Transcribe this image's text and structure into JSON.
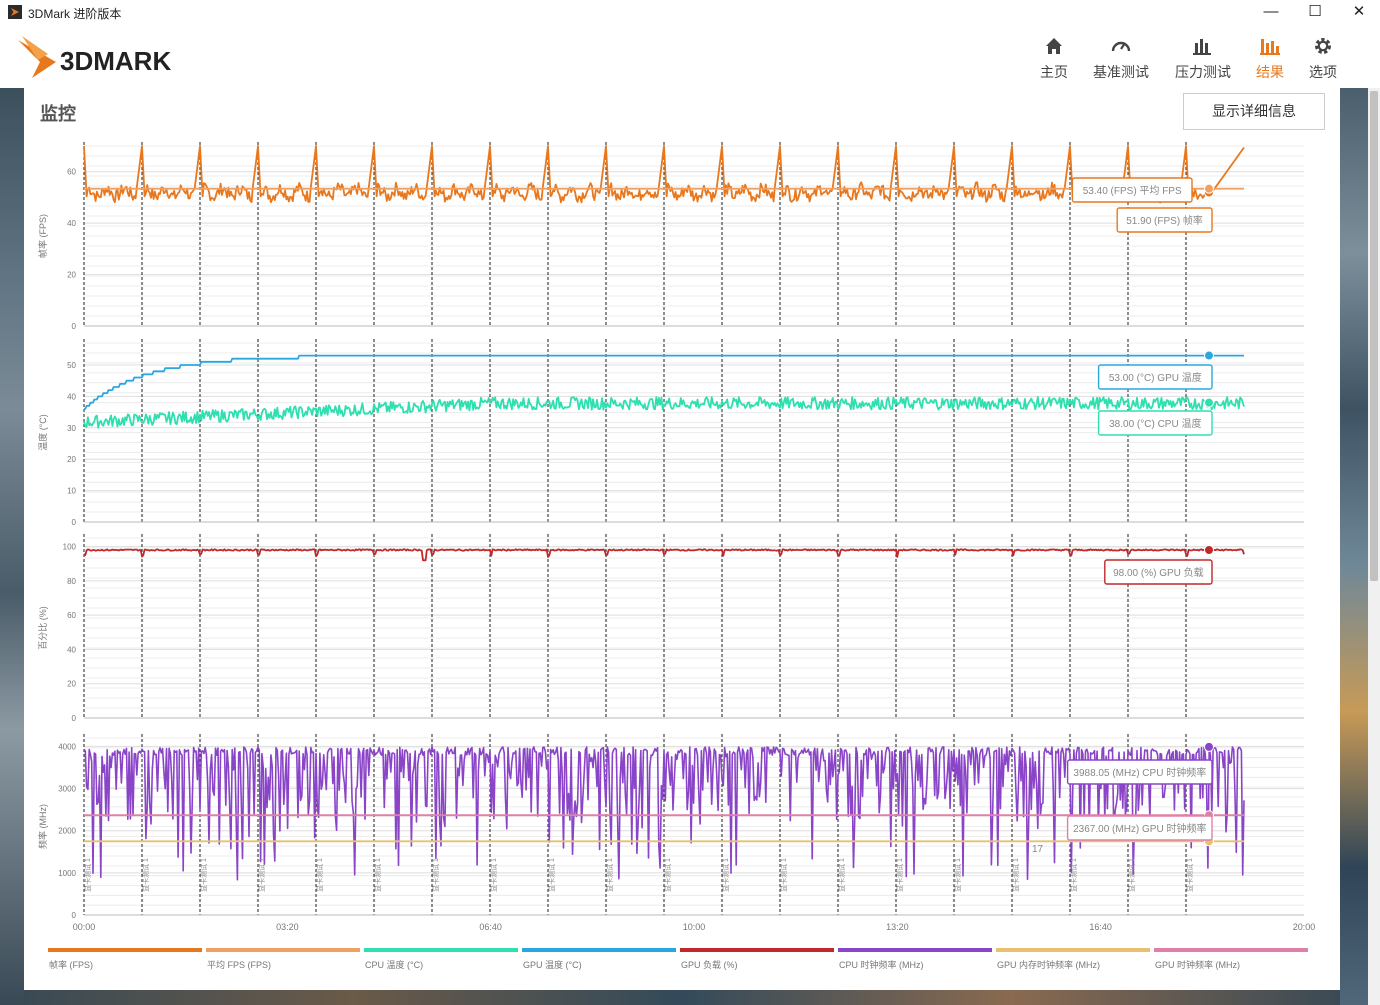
{
  "window": {
    "title": "3DMark 进阶版本",
    "min_icon": "minimize-icon",
    "max_icon": "maximize-icon",
    "close_icon": "close-icon"
  },
  "header": {
    "logo_text": "3DMARK",
    "nav": [
      {
        "label": "主页",
        "icon": "home-icon",
        "active": false
      },
      {
        "label": "基准测试",
        "icon": "gauge-icon",
        "active": false
      },
      {
        "label": "压力测试",
        "icon": "bar-chart-icon",
        "active": false
      },
      {
        "label": "结果",
        "icon": "results-icon",
        "active": true
      },
      {
        "label": "选项",
        "icon": "gear-icon",
        "active": false
      }
    ],
    "accent": "#e8781e"
  },
  "panel": {
    "title": "监控",
    "detail_button": "显示详细信息"
  },
  "chart_data": {
    "type": "line",
    "x_ticks": [
      "00:00",
      "03:20",
      "06:40",
      "10:00",
      "13:20",
      "16:40",
      "20:00"
    ],
    "x_range_seconds": [
      0,
      1200
    ],
    "loop_count": 20,
    "loop_label": "显卡测试 1",
    "panels": [
      {
        "ylabel": "帧率 (FPS)",
        "ylim": [
          0,
          70
        ],
        "yticks": [
          0,
          20,
          40,
          60
        ],
        "series": [
          {
            "name": "帧率 (FPS)",
            "color": "#e8781e",
            "pattern": "sawtooth",
            "base": 51.9,
            "peak": 70,
            "low": 48
          },
          {
            "name": "平均 FPS (FPS)",
            "color": "#f0a060",
            "pattern": "flat",
            "base": 53.4
          }
        ],
        "callouts": [
          {
            "text": "53.40 (FPS) 平均 FPS",
            "color": "#e8781e"
          },
          {
            "text": "51.90 (FPS) 帧率",
            "color": "#e8781e"
          }
        ]
      },
      {
        "ylabel": "温度 (°C)",
        "ylim": [
          0,
          57
        ],
        "yticks": [
          0,
          10,
          20,
          30,
          40,
          50
        ],
        "series": [
          {
            "name": "GPU 温度 (°C)",
            "color": "#29a8e0",
            "pattern": "rise",
            "start": 36,
            "end": 53
          },
          {
            "name": "CPU 温度 (°C)",
            "color": "#2ee0b0",
            "pattern": "noisy-rise",
            "start": 31,
            "end": 37
          }
        ],
        "callouts": [
          {
            "text": "53.00 (°C) GPU 温度",
            "color": "#29a8e0"
          },
          {
            "text": "38.00 (°C) CPU 温度",
            "color": "#2ee0b0"
          }
        ]
      },
      {
        "ylabel": "百分比 (%)",
        "ylim": [
          0,
          105
        ],
        "yticks": [
          0,
          20,
          40,
          60,
          80,
          100
        ],
        "series": [
          {
            "name": "GPU 负载 (%)",
            "color": "#c0282a",
            "pattern": "flat-dips",
            "base": 98
          }
        ],
        "callouts": [
          {
            "text": "98.00 (%) GPU 负载",
            "color": "#c0282a"
          }
        ]
      },
      {
        "ylabel": "频率 (MHz)",
        "ylim": [
          0,
          4200
        ],
        "yticks": [
          0,
          1000,
          2000,
          3000,
          4000
        ],
        "series": [
          {
            "name": "CPU 时钟频率 (MHz)",
            "color": "#8a44c8",
            "pattern": "spiky",
            "base": 3988,
            "low": 2200
          },
          {
            "name": "GPU 时钟频率 (MHz)",
            "color": "#e080a8",
            "pattern": "flat",
            "base": 2367
          },
          {
            "name": "GPU 内存时钟频率 (MHz)",
            "color": "#e8c070",
            "pattern": "flat",
            "base": 1750
          }
        ],
        "callouts": [
          {
            "text": "3988.05 (MHz) CPU 时钟频率",
            "color": "#8a44c8"
          },
          {
            "text": "2367.00 (MHz) GPU 时钟频率",
            "color": "#e080a8"
          }
        ],
        "partial_label": "17"
      }
    ],
    "legend": [
      {
        "name": "帧率 (FPS)",
        "color": "#e8781e"
      },
      {
        "name": "平均 FPS (FPS)",
        "color": "#f0a060"
      },
      {
        "name": "CPU 温度 (°C)",
        "color": "#2ee0b0"
      },
      {
        "name": "GPU 温度 (°C)",
        "color": "#29a8e0"
      },
      {
        "name": "GPU 负载 (%)",
        "color": "#c0282a"
      },
      {
        "name": "CPU 时钟频率 (MHz)",
        "color": "#8a44c8"
      },
      {
        "name": "GPU 内存时钟频率 (MHz)",
        "color": "#e8c070"
      },
      {
        "name": "GPU 时钟频率 (MHz)",
        "color": "#e080a8"
      }
    ]
  }
}
